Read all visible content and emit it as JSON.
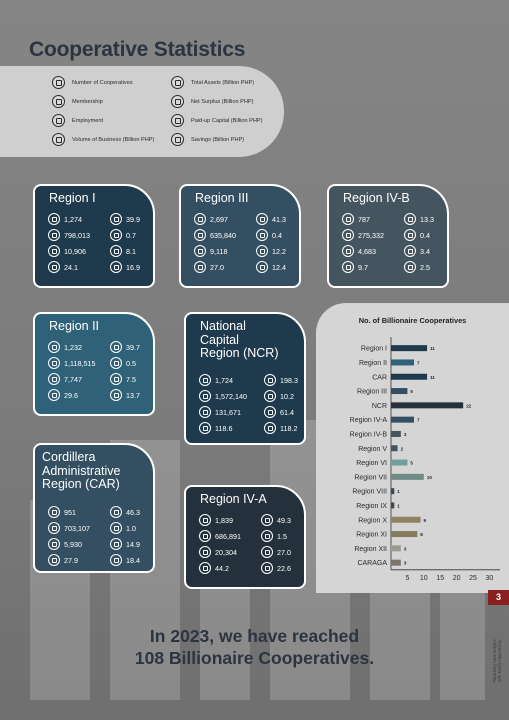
{
  "title": "Cooperative Statistics",
  "legend": [
    {
      "label": "Number of Cooperatives",
      "icon": "cooperative-icon"
    },
    {
      "label": "Membership",
      "icon": "membership-icon"
    },
    {
      "label": "Employment",
      "icon": "employment-icon"
    },
    {
      "label": "Volume of Business (Billion PHP)",
      "icon": "volume-icon"
    },
    {
      "label": "Total Assets (Billion PHP)",
      "icon": "assets-icon"
    },
    {
      "label": "Net Surplus (Billion PHP)",
      "icon": "surplus-icon"
    },
    {
      "label": "Paid-up Capital (Billion PHP)",
      "icon": "capital-icon"
    },
    {
      "label": "Savings (Billion PHP)",
      "icon": "savings-icon"
    }
  ],
  "regions": {
    "region1": {
      "name": "Region I",
      "left": [
        "1,274",
        "798,013",
        "10,906",
        "24.1"
      ],
      "right": [
        "39.9",
        "0.7",
        "8.1",
        "16.9"
      ]
    },
    "region3": {
      "name": "Region III",
      "left": [
        "2,697",
        "635,840",
        "9,118",
        "27.0"
      ],
      "right": [
        "41.3",
        "0.4",
        "12.2",
        "12.4"
      ]
    },
    "region4b": {
      "name": "Region IV-B",
      "left": [
        "787",
        "275,332",
        "4,683",
        "9.7"
      ],
      "right": [
        "13.3",
        "0.4",
        "3.4",
        "2.5"
      ]
    },
    "region2": {
      "name": "Region II",
      "left": [
        "1,232",
        "1,118,515",
        "7,747",
        "29.6"
      ],
      "right": [
        "39.7",
        "0.5",
        "7.5",
        "13.7"
      ]
    },
    "ncr": {
      "name_lines": [
        "National",
        "Capital",
        "Region (NCR)"
      ],
      "left": [
        "1,724",
        "1,572,140",
        "131,671",
        "118.6"
      ],
      "right": [
        "198.3",
        "10.2",
        "61.4",
        "118.2"
      ]
    },
    "car": {
      "name_lines": [
        "Cordillera",
        "Administrative",
        "Region (CAR)"
      ],
      "left": [
        "951",
        "703,107",
        "5,930",
        "27.9"
      ],
      "right": [
        "46.3",
        "1.0",
        "14.9",
        "18.4"
      ]
    },
    "region4a": {
      "name": "Region IV-A",
      "left": [
        "1,839",
        "686,891",
        "20,304",
        "44.2"
      ],
      "right": [
        "49.3",
        "1.5",
        "27.0",
        "22.6"
      ]
    }
  },
  "chart_data": {
    "type": "bar",
    "orientation": "horizontal",
    "title": "No. of Billionaire Cooperatives",
    "categories": [
      "Region I",
      "Region II",
      "CAR",
      "Region III",
      "NCR",
      "Region IV-A",
      "Region IV-B",
      "Region V",
      "Region VI",
      "Region VII",
      "Region VIII",
      "Region IX",
      "Region X",
      "Region XI",
      "Region XII",
      "CARAGA"
    ],
    "values": [
      11,
      7,
      11,
      5,
      22,
      7,
      3,
      2,
      5,
      10,
      1,
      1,
      9,
      8,
      3,
      3
    ],
    "bar_colors": [
      "#1f3a4c",
      "#2f6178",
      "#1f3a4c",
      "#344f61",
      "#24303b",
      "#344f61",
      "#455560",
      "#455560",
      "#6f9e9c",
      "#6f8b86",
      "#3b4a55",
      "#3b4a55",
      "#8e8461",
      "#867a5c",
      "#9a9c94",
      "#7d746a"
    ],
    "xticks": [
      5,
      10,
      15,
      20,
      25,
      30
    ],
    "xlim": [
      0,
      32
    ],
    "grid": false
  },
  "page_number": "3",
  "side_text": [
    "Reaching New Heights",
    "with Every Opportunity"
  ],
  "footer": [
    "In 2023, we have reached",
    "108 Billionaire Cooperatives."
  ]
}
